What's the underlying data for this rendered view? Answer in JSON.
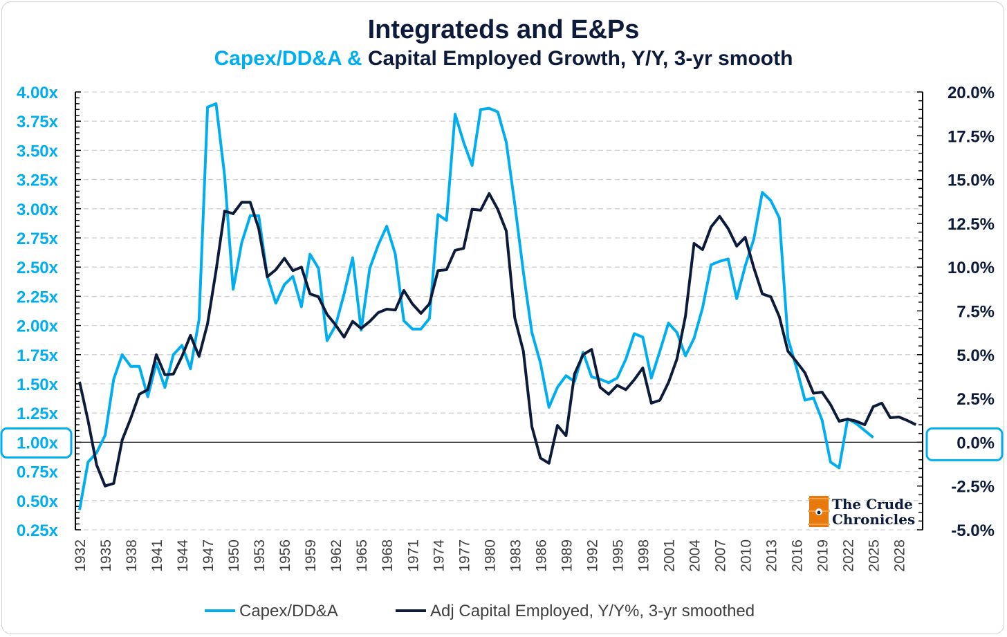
{
  "chart_data": {
    "type": "line",
    "title": "Integrateds and E&Ps",
    "subtitle_part1": "Capex/DD&A &",
    "subtitle_part2": "Capital Employed Growth, Y/Y, 3-yr smooth",
    "x_start": 1932,
    "x_end": 2030,
    "x_tick_labels": [
      "1932",
      "1935",
      "1938",
      "1941",
      "1944",
      "1947",
      "1950",
      "1953",
      "1956",
      "1959",
      "1962",
      "1965",
      "1968",
      "1971",
      "1974",
      "1977",
      "1980",
      "1983",
      "1986",
      "1989",
      "1992",
      "1995",
      "1998",
      "2001",
      "2004",
      "2007",
      "2010",
      "2013",
      "2016",
      "2019",
      "2022",
      "2025",
      "2028"
    ],
    "y_left": {
      "min": 0.25,
      "max": 4.0,
      "step": 0.25,
      "tick_labels": [
        "4.00x",
        "3.75x",
        "3.50x",
        "3.25x",
        "3.00x",
        "2.75x",
        "2.50x",
        "2.25x",
        "2.00x",
        "1.75x",
        "1.50x",
        "1.25x",
        "1.00x",
        "0.75x",
        "0.50x",
        "0.25x"
      ],
      "highlight": "1.00x"
    },
    "y_right": {
      "min": -5.0,
      "max": 20.0,
      "step": 2.5,
      "tick_labels": [
        "20.0%",
        "17.5%",
        "15.0%",
        "12.5%",
        "10.0%",
        "7.5%",
        "5.0%",
        "2.5%",
        "0.0%",
        "-2.5%",
        "-5.0%"
      ],
      "highlight": "0.0%"
    },
    "grid": true,
    "legend_position": "bottom",
    "series": [
      {
        "name": "Capex/DD&A",
        "axis": "left",
        "color": "#00aeef",
        "start_year": 1932,
        "values": [
          0.42,
          0.83,
          0.91,
          1.06,
          1.54,
          1.75,
          1.65,
          1.65,
          1.39,
          1.68,
          1.47,
          1.75,
          1.83,
          1.63,
          2.05,
          3.87,
          3.9,
          3.28,
          2.31,
          2.71,
          2.94,
          2.94,
          2.42,
          2.19,
          2.35,
          2.42,
          2.16,
          2.61,
          2.49,
          1.87,
          2.0,
          2.27,
          2.58,
          1.96,
          2.49,
          2.69,
          2.85,
          2.61,
          2.04,
          1.97,
          1.97,
          2.06,
          2.95,
          2.9,
          3.81,
          3.57,
          3.37,
          3.85,
          3.86,
          3.83,
          3.57,
          3.04,
          2.46,
          1.94,
          1.68,
          1.3,
          1.47,
          1.57,
          1.52,
          1.77,
          1.56,
          1.54,
          1.51,
          1.55,
          1.71,
          1.93,
          1.9,
          1.55,
          1.78,
          2.02,
          1.94,
          1.74,
          1.89,
          2.15,
          2.52,
          2.55,
          2.57,
          2.23,
          2.51,
          2.74,
          3.14,
          3.07,
          2.92,
          1.89,
          1.64,
          1.36,
          1.38,
          1.19,
          0.83,
          0.78,
          1.2,
          1.16,
          1.1,
          1.04
        ]
      },
      {
        "name": "Adj Capital Employed, Y/Y%, 3-yr smoothed",
        "axis": "right",
        "color": "#0d1b3a",
        "start_year": 1932,
        "values": [
          3.45,
          1.24,
          -1.3,
          -2.5,
          -2.35,
          0.13,
          1.36,
          2.74,
          3.0,
          5.0,
          3.85,
          3.9,
          4.9,
          6.1,
          4.9,
          6.77,
          9.8,
          13.2,
          13.05,
          13.7,
          13.7,
          12.2,
          9.45,
          9.85,
          10.5,
          9.8,
          10.0,
          8.47,
          8.3,
          7.3,
          6.7,
          6.0,
          6.9,
          6.5,
          6.9,
          7.4,
          7.6,
          7.55,
          8.67,
          7.9,
          7.36,
          7.9,
          9.8,
          9.85,
          10.96,
          11.07,
          13.3,
          13.25,
          14.2,
          13.3,
          12.06,
          7.1,
          5.2,
          0.9,
          -0.9,
          -1.2,
          0.96,
          0.37,
          3.9,
          5.0,
          5.3,
          3.14,
          2.74,
          3.25,
          3.0,
          3.57,
          4.24,
          2.23,
          2.4,
          3.4,
          4.76,
          7.2,
          11.35,
          11.0,
          12.3,
          12.9,
          12.2,
          11.2,
          11.7,
          9.97,
          8.47,
          8.3,
          7.16,
          5.2,
          4.6,
          3.96,
          2.8,
          2.86,
          2.15,
          1.2,
          1.32,
          1.2,
          1.0,
          2.03,
          2.23,
          1.4,
          1.44,
          1.24,
          1.0
        ]
      }
    ]
  },
  "logo": {
    "line1": "The Crude",
    "line2": "Chronicles"
  }
}
